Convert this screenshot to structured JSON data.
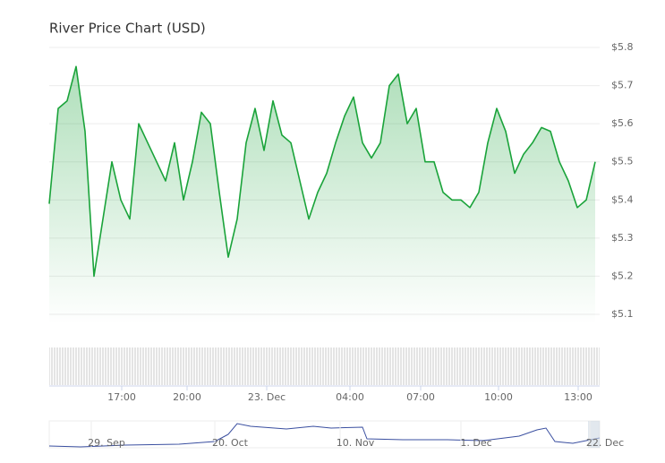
{
  "chart_data": {
    "type": "line",
    "title": "River Price Chart (USD)",
    "x": [
      0,
      1,
      2,
      3,
      4,
      5,
      6,
      7,
      8,
      9,
      10,
      11,
      12,
      13,
      14,
      15,
      16,
      17,
      18,
      19,
      20,
      21,
      22,
      23,
      24,
      25,
      26,
      27,
      28,
      29,
      30,
      31,
      32,
      33,
      34,
      35,
      36,
      37,
      38,
      39,
      40,
      41,
      42,
      43,
      44,
      45,
      46,
      47,
      48,
      49,
      50,
      51,
      52,
      53,
      54,
      55,
      56,
      57,
      58,
      59,
      60,
      61
    ],
    "series": [
      {
        "name": "River",
        "color": "#1aa33a",
        "values": [
          5.39,
          5.64,
          5.66,
          5.75,
          5.58,
          5.2,
          5.35,
          5.5,
          5.4,
          5.35,
          5.6,
          5.55,
          5.5,
          5.45,
          5.55,
          5.4,
          5.5,
          5.63,
          5.6,
          5.42,
          5.25,
          5.35,
          5.55,
          5.64,
          5.53,
          5.66,
          5.57,
          5.55,
          5.45,
          5.35,
          5.42,
          5.47,
          5.55,
          5.62,
          5.67,
          5.55,
          5.51,
          5.55,
          5.7,
          5.73,
          5.6,
          5.64,
          5.5,
          5.5,
          5.42,
          5.4,
          5.4,
          5.38,
          5.42,
          5.55,
          5.64,
          5.58,
          5.47,
          5.52,
          5.55,
          5.59,
          5.58,
          5.5,
          5.45,
          5.38,
          5.4,
          5.5
        ]
      }
    ],
    "xlim": [
      0,
      61.5
    ],
    "xticks": [
      {
        "value": 8.1,
        "label": "17:00"
      },
      {
        "value": 15.4,
        "label": "20:00"
      },
      {
        "value": 24.3,
        "label": "23. Dec"
      },
      {
        "value": 33.6,
        "label": "04:00"
      },
      {
        "value": 41.5,
        "label": "07:00"
      },
      {
        "value": 50.2,
        "label": "10:00"
      },
      {
        "value": 59.1,
        "label": "13:00"
      }
    ],
    "ylim": [
      5.1,
      5.8
    ],
    "yticks": [
      {
        "value": 5.1,
        "label": "$5.1"
      },
      {
        "value": 5.2,
        "label": "$5.2"
      },
      {
        "value": 5.3,
        "label": "$5.3"
      },
      {
        "value": 5.4,
        "label": "$5.4"
      },
      {
        "value": 5.5,
        "label": "$5.5"
      },
      {
        "value": 5.6,
        "label": "$5.6"
      },
      {
        "value": 5.7,
        "label": "$5.7"
      },
      {
        "value": 5.8,
        "label": "$5.8"
      }
    ],
    "grid": true,
    "navigator_labels": [
      "29. Sep",
      "20. Oct",
      "10. Nov",
      "1. Dec",
      "22. Dec"
    ]
  }
}
